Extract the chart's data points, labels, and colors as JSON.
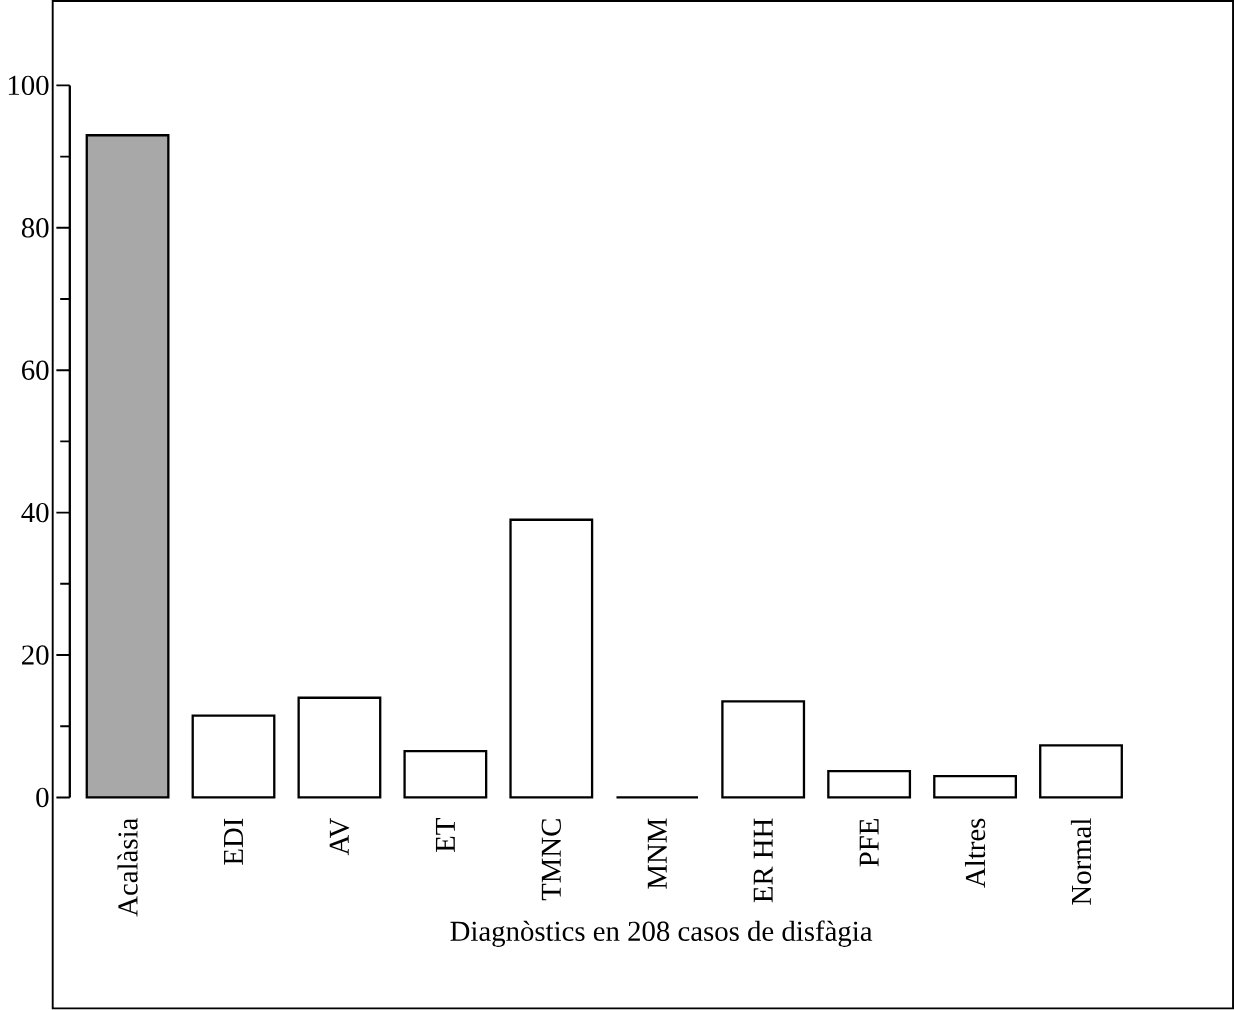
{
  "chart_data": {
    "type": "bar",
    "xlabel": "Diagnòstics en 208 casos de disfàgia",
    "categories": [
      "Acalàsia",
      "EDI",
      "AV",
      "ET",
      "TMNC",
      "MNM",
      "ER HH",
      "PFE",
      "Altres",
      "Normal"
    ],
    "values": [
      93,
      11.5,
      14,
      6.5,
      39,
      0,
      13.5,
      3.7,
      3,
      7.3
    ],
    "colors": [
      "#a8a8a8",
      "#ffffff",
      "#ffffff",
      "#ffffff",
      "#ffffff",
      "#ffffff",
      "#ffffff",
      "#ffffff",
      "#ffffff",
      "#ffffff"
    ],
    "ylim": [
      0,
      100
    ],
    "yticks": [
      0,
      20,
      40,
      60,
      80,
      100
    ],
    "grid": false
  }
}
